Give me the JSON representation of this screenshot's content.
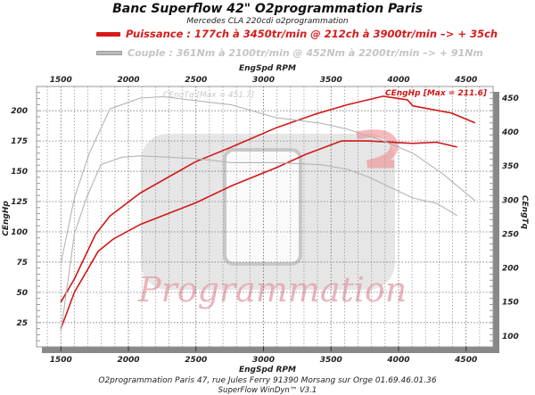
{
  "header": {
    "title": "Banc Superflow 42\" O2programmation Paris",
    "subtitle": "Mercedes CLA 220cdi o2programmation",
    "legend_power": "Puissance : 177ch à 3450tr/min @ 212ch à 3900tr/min  –> + 35ch",
    "legend_torque": "Couple : 361Nm à 2100tr/min @ 452Nm à 2200tr/min –> + 91Nm"
  },
  "footer": {
    "address": "O2programmation Paris 47, rue Jules Ferry 91390 Morsang sur Orge 01.69.46.01.36",
    "software": "SuperFlow WinDyn™ V3.1"
  },
  "watermark": {
    "text": "Programmation"
  },
  "colors": {
    "power": "#d01818",
    "torque": "#b4b4b4",
    "grid": "#777777"
  },
  "chart_data": {
    "type": "line",
    "title": "",
    "xlabel": "EngSpd RPM",
    "ylabel_left": "CEngHp",
    "ylabel_right": "CEngTq",
    "xlim": [
      1320,
      4700
    ],
    "ylim_left": [
      5,
      220
    ],
    "ylim_right": [
      84,
      467
    ],
    "xticks": [
      1500,
      2000,
      2500,
      3000,
      3500,
      4000,
      4500
    ],
    "yticks_left": [
      25,
      50,
      75,
      100,
      125,
      150,
      175,
      200
    ],
    "yticks_right": [
      100,
      150,
      200,
      250,
      300,
      350,
      400,
      450
    ],
    "grid": true,
    "annotations": [
      "CEngTq [Max = 451.7]",
      "CEngHp [Max = 211.6]"
    ],
    "series": [
      {
        "axis": "left",
        "color": "#d01818",
        "x": [
          1500,
          1600,
          1757,
          1863,
          2087,
          2500,
          2764,
          3096,
          3380,
          3623,
          3887,
          4065,
          4105,
          4394,
          4566
        ],
        "y": [
          42,
          61,
          98,
          113,
          132,
          158,
          170,
          186,
          197,
          205,
          212,
          209,
          204,
          198,
          190
        ]
      },
      {
        "axis": "left",
        "color": "#d01818",
        "x": [
          1500,
          1600,
          1777,
          1888,
          2087,
          2500,
          2764,
          3096,
          3313,
          3577,
          3775,
          4105,
          4283,
          4434
        ],
        "y": [
          20,
          50,
          84,
          94,
          106,
          124,
          138,
          153,
          164,
          175,
          175,
          173,
          174,
          170
        ]
      },
      {
        "axis": "right",
        "color": "#b4b4b4",
        "x": [
          1500,
          1600,
          1711,
          1863,
          2087,
          2258,
          2764,
          3096,
          3425,
          3623,
          3887,
          4105,
          4330,
          4566
        ],
        "y": [
          207,
          303,
          369,
          434,
          450,
          452,
          440,
          421,
          413,
          404,
          387,
          369,
          338,
          299
        ]
      },
      {
        "axis": "right",
        "color": "#b4b4b4",
        "x": [
          1500,
          1600,
          1690,
          1796,
          1954,
          2087,
          2500,
          2764,
          3096,
          3425,
          3623,
          3775,
          4105,
          4283,
          4434
        ],
        "y": [
          106,
          250,
          303,
          352,
          363,
          365,
          361,
          355,
          355,
          352,
          345,
          334,
          303,
          295,
          277
        ]
      }
    ]
  }
}
